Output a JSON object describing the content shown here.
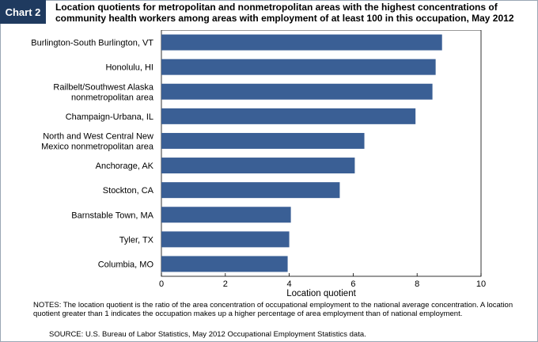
{
  "label": "Chart 2",
  "title": "Location quotients for metropolitan and nonmetropolitan areas with the highest concentrations of community health workers among areas with employment of at least 100 in this occupation, May 2012",
  "notes": {
    "label": "NOTES:",
    "text": "The location quotient is the ratio of the area concentration of occupational employment to the national average concentration. A location quotient greater than 1 indicates the occupation makes up a higher percentage of area employment than of national employment."
  },
  "source": {
    "label": "SOURCE:",
    "text": "U.S. Bureau of Labor Statistics, May 2012 Occupational Employment Statistics data."
  },
  "chart_data": {
    "type": "bar",
    "orientation": "horizontal",
    "categories": [
      [
        "Burlington-South Burlington, VT"
      ],
      [
        "Honolulu, HI"
      ],
      [
        "Railbelt/Southwest Alaska",
        "nonmetropolitan area"
      ],
      [
        "Champaign-Urbana, IL"
      ],
      [
        "North and West Central New",
        "Mexico nonmetropolitan area"
      ],
      [
        "Anchorage, AK"
      ],
      [
        "Stockton, CA"
      ],
      [
        "Barnstable Town, MA"
      ],
      [
        "Tyler, TX"
      ],
      [
        "Columbia, MO"
      ]
    ],
    "values": [
      8.78,
      8.58,
      8.48,
      7.95,
      6.35,
      6.05,
      5.58,
      4.05,
      4.0,
      3.95
    ],
    "xlabel": "Location quotient",
    "xlim": [
      0,
      10
    ],
    "xticks": [
      "0",
      "2",
      "4",
      "6",
      "8",
      "10"
    ],
    "bar_color": "#3a5f95",
    "grid": false
  }
}
